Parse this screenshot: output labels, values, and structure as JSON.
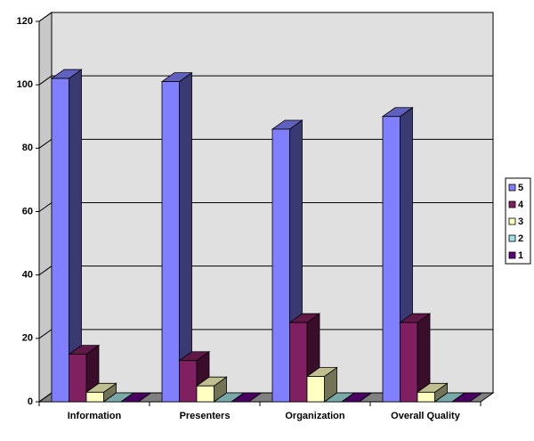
{
  "chart_data": {
    "type": "bar3d",
    "categories": [
      "Information",
      "Presenters",
      "Organization",
      "Overall Quality"
    ],
    "series": [
      {
        "name": "5",
        "color": "#8080ff",
        "values": [
          102,
          101,
          86,
          90
        ]
      },
      {
        "name": "4",
        "color": "#802060",
        "values": [
          15,
          13,
          25,
          25
        ]
      },
      {
        "name": "3",
        "color": "#ffffc0",
        "values": [
          3,
          5,
          8,
          3
        ]
      },
      {
        "name": "2",
        "color": "#a0e0e0",
        "values": [
          0,
          0,
          0,
          0
        ]
      },
      {
        "name": "1",
        "color": "#600080",
        "values": [
          0,
          0,
          0,
          0
        ]
      }
    ],
    "ylim": [
      0,
      120
    ],
    "yticks": [
      0,
      20,
      40,
      60,
      80,
      100,
      120
    ],
    "grid": true,
    "legend": "right"
  }
}
